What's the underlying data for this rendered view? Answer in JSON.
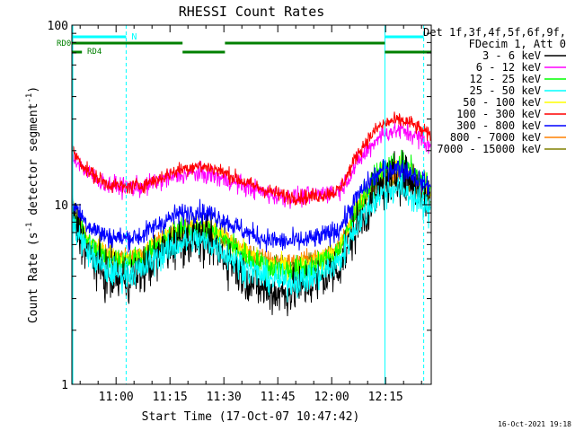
{
  "chart_data": {
    "type": "line",
    "title": "RHESSI Count Rates",
    "xlabel": "Start Time (17-Oct-07 10:47:42)",
    "ylabel": "Count Rate (s⁻¹ detector segment⁻¹)",
    "ylabel_parts": {
      "a": "Count Rate (s",
      "b": "-1",
      "c": " detector segment",
      "d": "-1",
      "e": ")"
    },
    "yscale": "log",
    "ylim": [
      1,
      100
    ],
    "xlim_minutes": [
      47.7,
      147.7
    ],
    "x_tick_minutes": [
      60,
      75,
      90,
      105,
      120,
      135
    ],
    "x_tick_labels": [
      "11:00",
      "11:15",
      "11:30",
      "11:45",
      "12:00",
      "12:15"
    ],
    "y_tick_values": [
      1,
      10,
      100
    ],
    "y_tick_labels": [
      "1",
      "10",
      "100"
    ],
    "legend": {
      "header": [
        "Det 1f,3f,4f,5f,6f,9f,",
        "FDecim 1, Att 0"
      ],
      "position": "top-right outside"
    },
    "x_sample_minutes": [
      47.7,
      52,
      57,
      62,
      67,
      72,
      77,
      82,
      87,
      92,
      97,
      102,
      107,
      112,
      117,
      122,
      125,
      127,
      130,
      133,
      136,
      139,
      142,
      145,
      147.7
    ],
    "series": [
      {
        "name": "3 - 6 keV",
        "color": "#000000",
        "noise": 0.22,
        "order": 4,
        "values": [
          9,
          5.5,
          4,
          3.8,
          4.2,
          5.2,
          6.2,
          6.5,
          6,
          4.8,
          3.8,
          3.3,
          3.2,
          3.5,
          3.8,
          4.5,
          6.2,
          7.5,
          9.5,
          12,
          13.5,
          14.5,
          13.5,
          12,
          11
        ]
      },
      {
        "name": "6 - 12 keV",
        "color": "#ff00ff",
        "noise": 0.09,
        "order": 7,
        "values": [
          19,
          15,
          13,
          12.5,
          12.5,
          13.5,
          14.5,
          15,
          14.5,
          13.5,
          12.5,
          11.5,
          11,
          11,
          11.5,
          12,
          14.5,
          17,
          20,
          24,
          25.5,
          26,
          25,
          23,
          21
        ]
      },
      {
        "name": "12 - 25 keV",
        "color": "#00ff00",
        "noise": 0.12,
        "order": 3,
        "values": [
          9.5,
          6.3,
          5,
          4.8,
          5,
          6,
          7,
          7.5,
          7,
          6,
          5,
          4.5,
          4.3,
          4.4,
          4.7,
          5.5,
          7.5,
          9.5,
          12,
          15,
          16.5,
          17,
          15.5,
          13.5,
          12
        ]
      },
      {
        "name": "25 - 50 keV",
        "color": "#00ffff",
        "noise": 0.14,
        "order": 6,
        "values": [
          8,
          5.5,
          4.3,
          4.1,
          4.3,
          5.2,
          6,
          6.4,
          6,
          5.1,
          4.3,
          3.9,
          3.7,
          3.8,
          4.1,
          4.8,
          6.4,
          7.8,
          9.3,
          11.2,
          12.2,
          12.4,
          11.3,
          10,
          9
        ]
      },
      {
        "name": "50 - 100 keV",
        "color": "#ffff00",
        "noise": 0.1,
        "order": 2,
        "values": [
          9.5,
          6.4,
          5.2,
          5,
          5.2,
          6.2,
          7.2,
          7.6,
          7.2,
          6.2,
          5.2,
          4.7,
          4.5,
          4.6,
          4.9,
          5.7,
          7.6,
          9.6,
          12,
          14.5,
          16,
          16.5,
          15,
          13.2,
          11.8
        ]
      },
      {
        "name": "100 - 300 keV",
        "color": "#ff0000",
        "noise": 0.07,
        "order": 8,
        "values": [
          20,
          15.5,
          13.2,
          12.5,
          12.8,
          14,
          15.5,
          16.5,
          16,
          14.5,
          13,
          12,
          11.2,
          11,
          11.3,
          12,
          15.5,
          19,
          23,
          27,
          29,
          29.5,
          28.5,
          26,
          24
        ]
      },
      {
        "name": "300 - 800 keV",
        "color": "#0000ff",
        "noise": 0.1,
        "order": 5,
        "values": [
          10.5,
          7.8,
          6.7,
          6.5,
          6.7,
          7.8,
          8.8,
          9.2,
          8.8,
          7.8,
          6.9,
          6.4,
          6.2,
          6.3,
          6.6,
          7.3,
          9.2,
          11,
          13,
          15,
          16,
          16,
          15,
          13.5,
          12.5
        ]
      },
      {
        "name": "800 - 7000 keV",
        "color": "#ff8000",
        "noise": 0.08,
        "order": 1,
        "values": [
          9,
          6.3,
          5.3,
          5.1,
          5.3,
          6.3,
          7.2,
          7.6,
          7.2,
          6.3,
          5.4,
          5,
          4.8,
          4.9,
          5.2,
          5.9,
          7.6,
          9.4,
          11.5,
          13.5,
          14.5,
          14.7,
          13.7,
          12.3,
          11.3
        ]
      },
      {
        "name": "7000 - 15000 keV",
        "color": "#808000",
        "noise": 0.08,
        "order": 0,
        "values": [
          8.5,
          6,
          5.1,
          4.9,
          5.1,
          6,
          6.8,
          7.2,
          6.8,
          6,
          5.2,
          4.8,
          4.6,
          4.7,
          5,
          5.6,
          7.2,
          8.8,
          10.8,
          12.8,
          13.8,
          14,
          13,
          11.7,
          10.8
        ]
      }
    ],
    "annotations": {
      "night_flag": {
        "label": "N",
        "color": "#00ffff",
        "segments": [
          [
            47.7,
            62.8
          ],
          [
            134.8,
            145.6
          ]
        ]
      },
      "rd0": {
        "label": "RD0",
        "color": "#008000",
        "segments": [
          [
            47.7,
            78.5
          ],
          [
            90.3,
            134.8
          ]
        ],
        "gap": [
          [
            78.5,
            90.3
          ]
        ]
      },
      "rd4": {
        "label": "RD4",
        "color": "#008000",
        "segments": [
          [
            47.7,
            50.5
          ],
          [
            78.5,
            90.3
          ],
          [
            134.8,
            147.7
          ]
        ]
      },
      "cyan_solid_lines_minutes": [
        47.7,
        134.8
      ],
      "cyan_dashed_lines_minutes": [
        62.8,
        145.6
      ]
    }
  },
  "footer": {
    "timestamp": "16-Oct-2021 19:18"
  }
}
